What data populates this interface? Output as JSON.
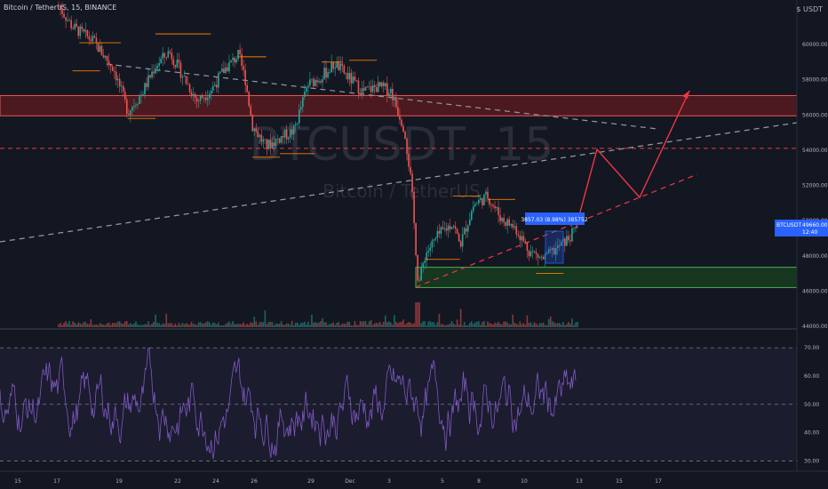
{
  "header": {
    "title": "Bitcoin / TetherUS, 15, BINANCE",
    "currency": "$ USDT"
  },
  "watermark": {
    "symbol": "BTCUSDT, 15",
    "name": "Bitcoin / TetherUS"
  },
  "colors": {
    "background": "#131722",
    "up": "#26a69a",
    "down": "#ef5350",
    "rsi": "#7e57c2",
    "resistance_zone": "#b71c1c",
    "support_zone": "#1b5e20",
    "swing_lines": "#f57c00",
    "projection": "#f23645",
    "price_label": "#2962ff"
  },
  "chart_data": {
    "type": "candlestick",
    "price_axis": {
      "min": 44000,
      "max": 62000,
      "ticks": [
        "60000.00",
        "58000.00",
        "56000.00",
        "54000.00",
        "52000.00",
        "50000.00",
        "48000.00",
        "46000.00",
        "44000.00"
      ]
    },
    "x_axis": {
      "ticks": [
        "15",
        "17",
        "19",
        "22",
        "24",
        "26",
        "29",
        "Dec",
        "3",
        "5",
        "8",
        "10",
        "13",
        "15",
        "17"
      ]
    },
    "price_path": [
      [
        0,
        62200
      ],
      [
        0.02,
        61000
      ],
      [
        0.05,
        60200
      ],
      [
        0.08,
        58600
      ],
      [
        0.1,
        56200
      ],
      [
        0.12,
        57200
      ],
      [
        0.14,
        58800
      ],
      [
        0.16,
        59600
      ],
      [
        0.18,
        58200
      ],
      [
        0.2,
        56800
      ],
      [
        0.22,
        57400
      ],
      [
        0.24,
        58600
      ],
      [
        0.26,
        59400
      ],
      [
        0.27,
        58000
      ],
      [
        0.28,
        55400
      ],
      [
        0.3,
        54200
      ],
      [
        0.32,
        54700
      ],
      [
        0.34,
        55100
      ],
      [
        0.36,
        57700
      ],
      [
        0.38,
        58200
      ],
      [
        0.4,
        58900
      ],
      [
        0.42,
        58100
      ],
      [
        0.44,
        57300
      ],
      [
        0.46,
        57600
      ],
      [
        0.48,
        57400
      ],
      [
        0.5,
        55200
      ],
      [
        0.51,
        52000
      ],
      [
        0.52,
        46300
      ],
      [
        0.53,
        48100
      ],
      [
        0.55,
        49200
      ],
      [
        0.57,
        49900
      ],
      [
        0.58,
        48600
      ],
      [
        0.6,
        50900
      ],
      [
        0.62,
        51400
      ],
      [
        0.64,
        50100
      ],
      [
        0.66,
        49600
      ],
      [
        0.68,
        48300
      ],
      [
        0.7,
        47800
      ],
      [
        0.72,
        48400
      ],
      [
        0.74,
        49100
      ],
      [
        0.75,
        49660
      ]
    ],
    "current_price": {
      "label": "BTCUSDT",
      "value": "49660.00",
      "countdown": "12:40"
    },
    "measure_label": "3857.03 (8.98%) 385752",
    "resistance_zone": [
      55950,
      57100
    ],
    "support_zone": [
      46200,
      47350
    ],
    "horizontal_level": 54100,
    "rsi": {
      "ticks": [
        "70.00",
        "60.00",
        "50.00",
        "40.00",
        "30.00"
      ],
      "min": 27,
      "max": 76,
      "upper": 70,
      "mid": 50,
      "lower": 30
    }
  }
}
